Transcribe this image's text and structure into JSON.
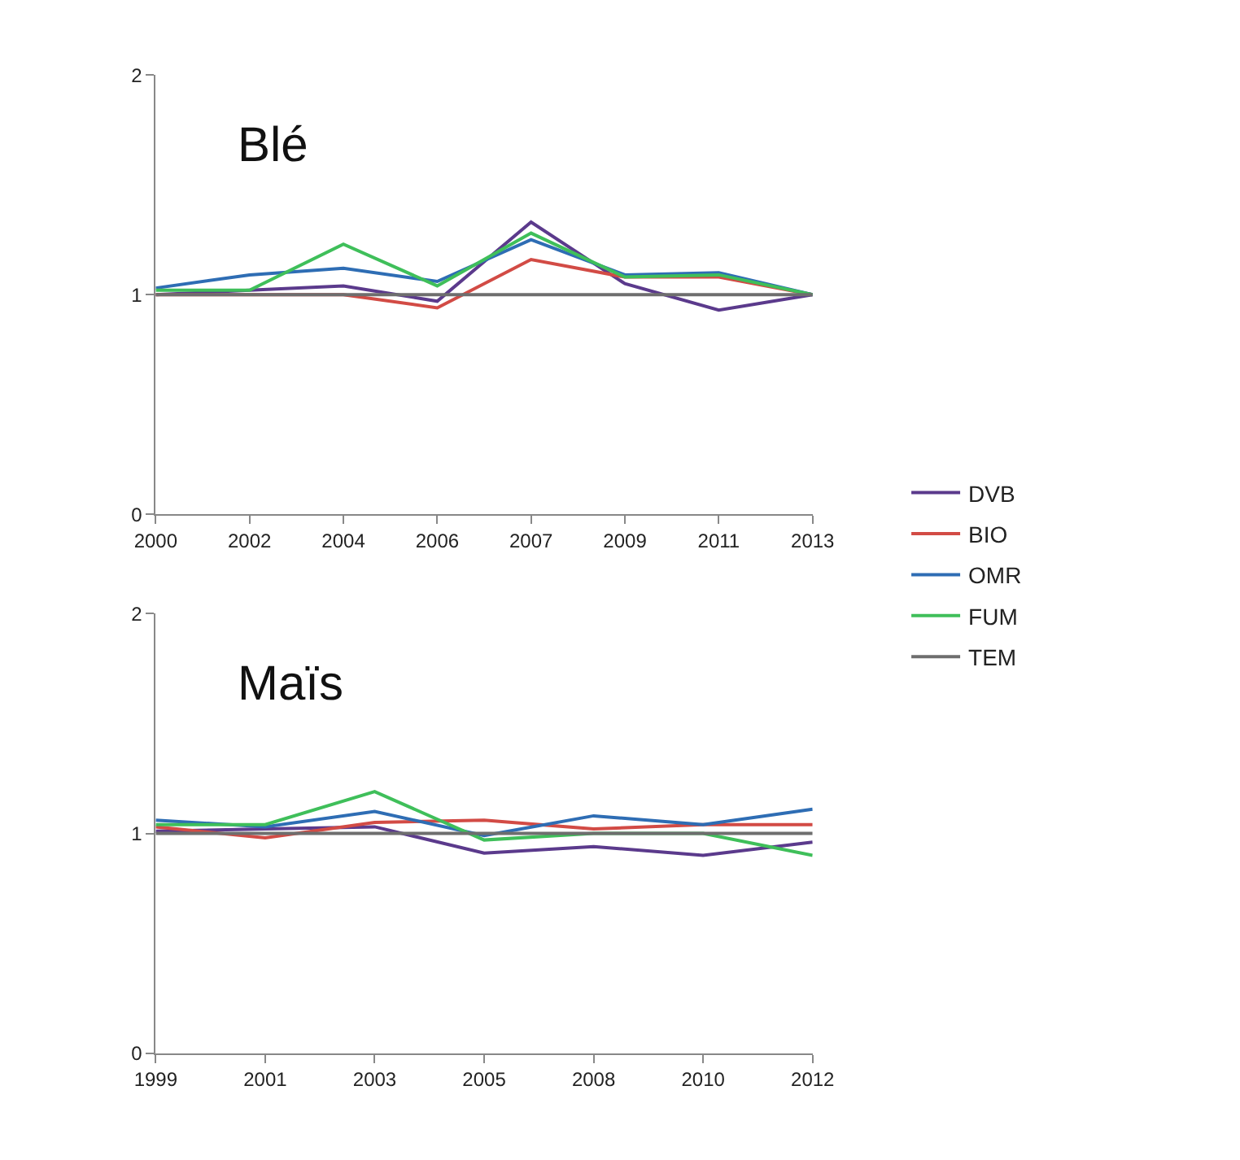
{
  "chart_data": [
    {
      "type": "line",
      "title": "Blé",
      "categories": [
        "2000",
        "2002",
        "2004",
        "2006",
        "2007",
        "2009",
        "2011",
        "2013"
      ],
      "ylim": [
        0,
        2
      ],
      "yticks": [
        0,
        1,
        2
      ],
      "legend": "right",
      "marker": "none",
      "series": [
        {
          "name": "DVB",
          "color": "#5b3a8c",
          "values": [
            1.0,
            1.02,
            1.04,
            0.97,
            1.33,
            1.05,
            0.93,
            1.0
          ]
        },
        {
          "name": "BIO",
          "color": "#d24b45",
          "values": [
            1.0,
            1.0,
            1.0,
            0.94,
            1.16,
            1.08,
            1.08,
            1.0
          ]
        },
        {
          "name": "OMR",
          "color": "#2e6db4",
          "values": [
            1.03,
            1.09,
            1.12,
            1.06,
            1.25,
            1.09,
            1.1,
            1.0
          ]
        },
        {
          "name": "FUM",
          "color": "#3fbf5a",
          "values": [
            1.02,
            1.02,
            1.23,
            1.04,
            1.28,
            1.08,
            1.09,
            1.0
          ]
        },
        {
          "name": "TEM",
          "color": "#6e6e6e",
          "values": [
            1.0,
            1.0,
            1.0,
            1.0,
            1.0,
            1.0,
            1.0,
            1.0
          ]
        }
      ]
    },
    {
      "type": "line",
      "title": "Maïs",
      "categories": [
        "1999",
        "2001",
        "2003",
        "2005",
        "2008",
        "2010",
        "2012"
      ],
      "ylim": [
        0,
        2
      ],
      "yticks": [
        0,
        1,
        2
      ],
      "legend": "right",
      "marker": "none",
      "series": [
        {
          "name": "DVB",
          "color": "#5b3a8c",
          "values": [
            1.01,
            1.02,
            1.03,
            0.91,
            0.94,
            0.9,
            0.96
          ]
        },
        {
          "name": "BIO",
          "color": "#d24b45",
          "values": [
            1.03,
            0.98,
            1.05,
            1.06,
            1.02,
            1.04,
            1.04
          ]
        },
        {
          "name": "OMR",
          "color": "#2e6db4",
          "values": [
            1.06,
            1.03,
            1.1,
            0.99,
            1.08,
            1.04,
            1.11
          ]
        },
        {
          "name": "FUM",
          "color": "#3fbf5a",
          "values": [
            1.04,
            1.04,
            1.19,
            0.97,
            1.0,
            1.0,
            0.9
          ]
        },
        {
          "name": "TEM",
          "color": "#6e6e6e",
          "values": [
            1.0,
            1.0,
            1.0,
            1.0,
            1.0,
            1.0,
            1.0
          ]
        }
      ]
    }
  ]
}
